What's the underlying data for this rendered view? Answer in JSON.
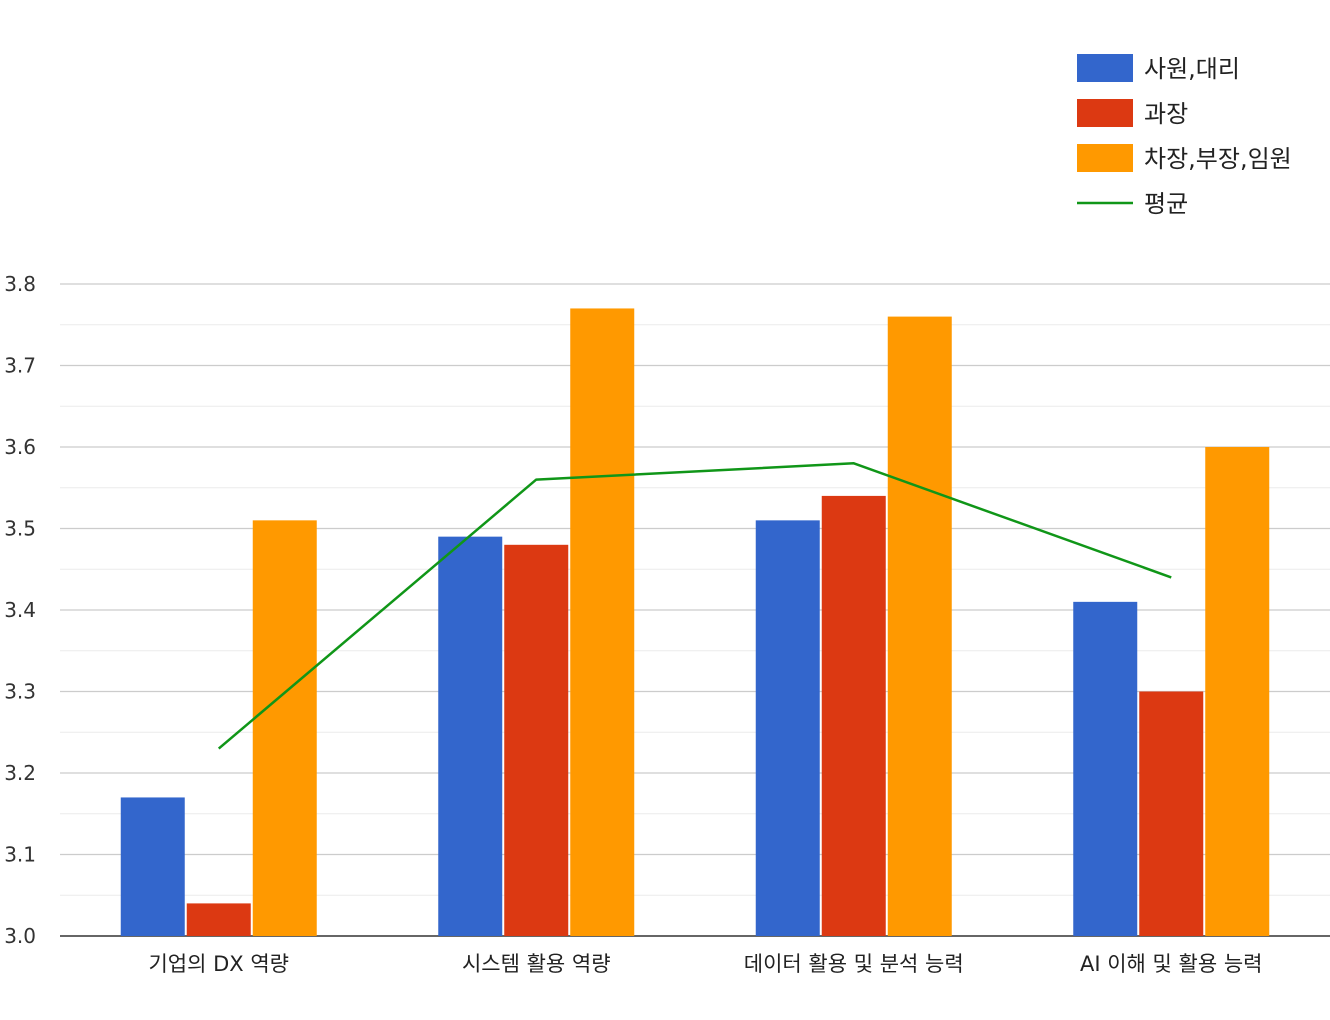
{
  "chart_data": {
    "type": "bar",
    "categories": [
      "기업의 DX 역량",
      "시스템 활용 역량",
      "데이터 활용 및 분석 능력",
      "AI 이해 및 활용 능력"
    ],
    "series": [
      {
        "name": "사원,대리",
        "type": "bar",
        "color": "#3366cc",
        "values": [
          3.17,
          3.49,
          3.51,
          3.41
        ]
      },
      {
        "name": "과장",
        "type": "bar",
        "color": "#dc3912",
        "values": [
          3.04,
          3.48,
          3.54,
          3.3
        ]
      },
      {
        "name": "차장,부장,임원",
        "type": "bar",
        "color": "#ff9900",
        "values": [
          3.51,
          3.77,
          3.76,
          3.6
        ]
      },
      {
        "name": "평균",
        "type": "line",
        "color": "#109618",
        "values": [
          3.23,
          3.56,
          3.58,
          3.44
        ]
      }
    ],
    "ylim": [
      3.0,
      3.8
    ],
    "yticks": [
      "3.0",
      "3.1",
      "3.2",
      "3.3",
      "3.4",
      "3.5",
      "3.6",
      "3.7",
      "3.8"
    ],
    "grid": true,
    "legend_position": "top-right",
    "title": "",
    "xlabel": "",
    "ylabel": ""
  }
}
